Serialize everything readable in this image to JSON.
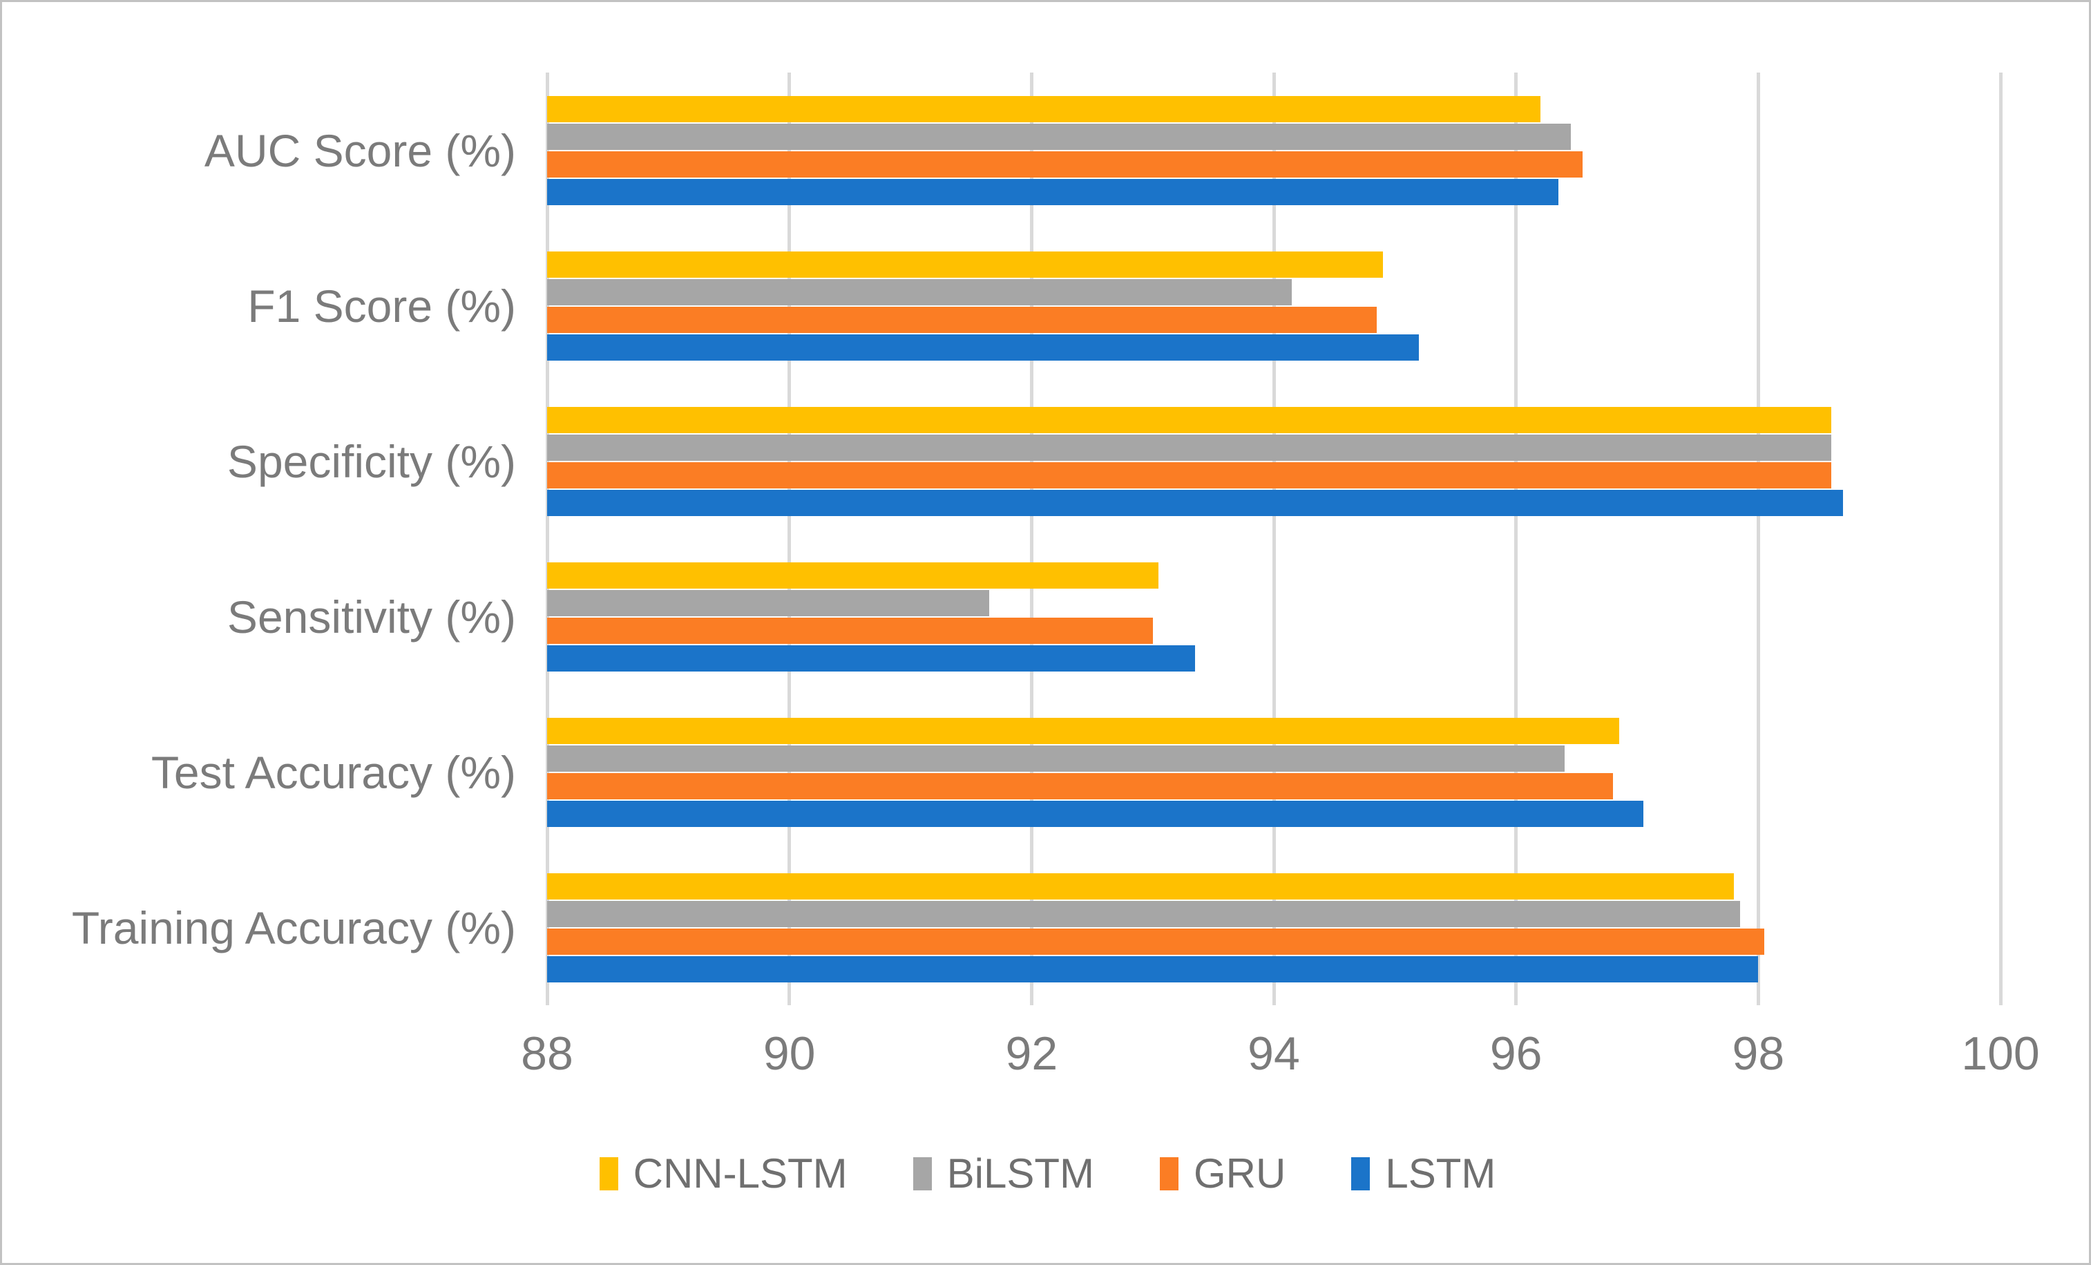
{
  "figure": {
    "background": "#FFFFFF",
    "border_color": "#C2C2C2",
    "text_color": "#7B7B7B",
    "legend_text_color": "#6F6F6F"
  },
  "chart_data": {
    "type": "bar",
    "orientation": "horizontal",
    "title": "",
    "xlabel": "",
    "ylabel": "",
    "categories": [
      "AUC Score (%)",
      "F1 Score (%)",
      "Specificity (%)",
      "Sensitivity (%)",
      "Test Accuracy (%)",
      "Training Accuracy (%)"
    ],
    "series": [
      {
        "name": "CNN-LSTM",
        "color": "#FFC000",
        "values": [
          96.2,
          94.9,
          98.6,
          93.05,
          96.85,
          97.8
        ]
      },
      {
        "name": "BiLSTM",
        "color": "#A6A6A6",
        "values": [
          96.45,
          94.15,
          98.6,
          91.65,
          96.4,
          97.85
        ]
      },
      {
        "name": "GRU",
        "color": "#FB7D24",
        "values": [
          96.55,
          94.85,
          98.6,
          93.0,
          96.8,
          98.05
        ]
      },
      {
        "name": "LSTM",
        "color": "#1B74C9",
        "values": [
          96.35,
          95.2,
          98.7,
          93.35,
          97.05,
          98.0
        ]
      }
    ],
    "x_axis": {
      "min": 88,
      "max": 100,
      "tick_step": 2,
      "tick_labels": [
        "88",
        "90",
        "92",
        "94",
        "96",
        "98",
        "100"
      ]
    },
    "grid": {
      "vertical_gridlines": true,
      "color": "#D9D9D9"
    },
    "legend": {
      "position": "bottom",
      "entries": [
        "CNN-LSTM",
        "BiLSTM",
        "GRU",
        "LSTM"
      ]
    },
    "series_display_order_top_to_bottom": [
      "CNN-LSTM",
      "BiLSTM",
      "GRU",
      "LSTM"
    ]
  }
}
